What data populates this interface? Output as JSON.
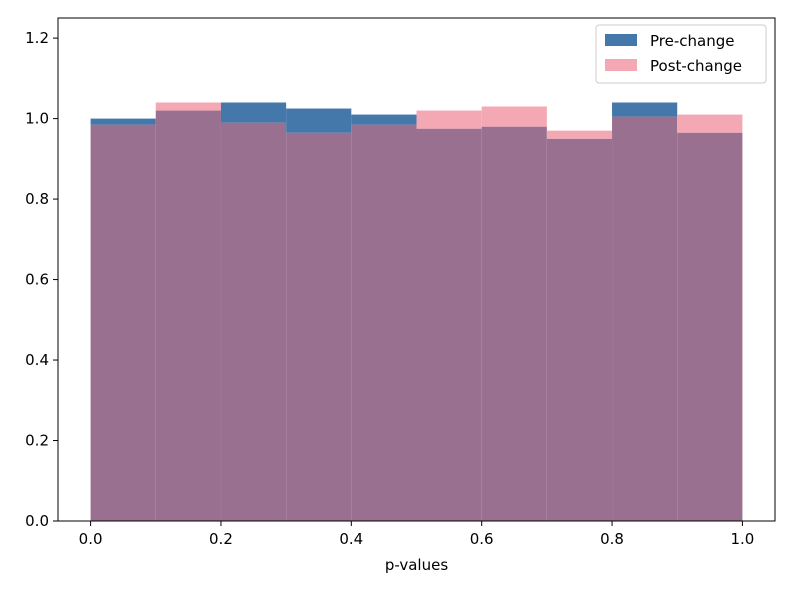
{
  "chart_data": {
    "type": "bar",
    "subtype": "overlaid-histogram",
    "xlabel": "p-values",
    "ylabel": "",
    "title": "",
    "xlim": [
      -0.05,
      1.05
    ],
    "ylim": [
      0,
      1.25
    ],
    "grid": false,
    "legend_position": "top-right",
    "bin_edges": [
      0.0,
      0.1,
      0.2,
      0.3,
      0.4,
      0.5,
      0.6,
      0.7,
      0.8,
      0.9,
      1.0
    ],
    "x_ticks": [
      "0.0",
      "0.2",
      "0.4",
      "0.6",
      "0.8",
      "1.0"
    ],
    "y_ticks": [
      "0.0",
      "0.2",
      "0.4",
      "0.6",
      "0.8",
      "1.0",
      "1.2"
    ],
    "series": [
      {
        "name": "Pre-change",
        "color": "#4477aa",
        "values": [
          1.0,
          1.02,
          1.04,
          1.025,
          1.01,
          0.975,
          0.98,
          0.95,
          1.04,
          0.965
        ]
      },
      {
        "name": "Post-change",
        "color": "#f4a8b4",
        "values": [
          0.985,
          1.04,
          0.99,
          0.965,
          0.985,
          1.02,
          1.03,
          0.97,
          1.005,
          1.01
        ]
      }
    ],
    "overlap_color": "#9a7090"
  }
}
